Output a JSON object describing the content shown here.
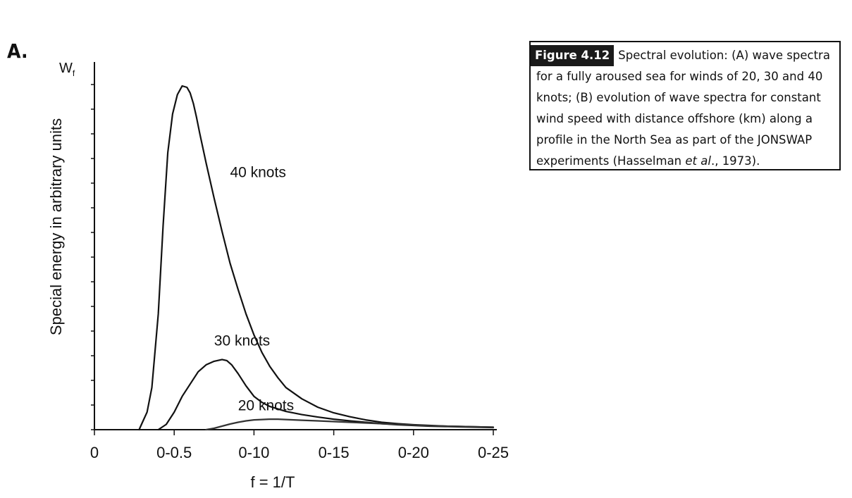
{
  "panel_label": "A.",
  "caption": {
    "figure_tag": "Figure 4.12",
    "text_before_italic": "Spectral evolution: (A) wave spectra for a fully aroused sea for winds of 20, 30 and 40 knots; (B) evolution of wave spectra for constant wind speed with distance offshore (km) along a profile in the North Sea as part of the JONSWAP experiments (Hasselman ",
    "italic": "et al",
    "text_after_italic": "., 1973)."
  },
  "chart_data": {
    "type": "line",
    "title": "",
    "xlabel": "f = 1/T",
    "ylabel": "Special energy in arbitrary units",
    "y_axis_symbol": "W",
    "y_axis_symbol_sub": "f",
    "x_tick_labels": [
      "0",
      "0-0.5",
      "0-10",
      "0-15",
      "0-20",
      "0-25"
    ],
    "x_tick_values": [
      0,
      0.05,
      0.1,
      0.15,
      0.2,
      0.25
    ],
    "xlim": [
      0,
      0.25
    ],
    "ylim": [
      0,
      100
    ],
    "y_minor_ticks": 14,
    "grid": false,
    "series": [
      {
        "name": "40 knots",
        "label_at": [
          0.085,
          72
        ],
        "x": [
          0.028,
          0.03,
          0.033,
          0.036,
          0.04,
          0.043,
          0.046,
          0.049,
          0.052,
          0.055,
          0.058,
          0.06,
          0.062,
          0.064,
          0.066,
          0.07,
          0.075,
          0.08,
          0.085,
          0.09,
          0.095,
          0.1,
          0.105,
          0.11,
          0.115,
          0.12,
          0.13,
          0.14,
          0.15,
          0.16,
          0.17,
          0.18,
          0.19,
          0.2,
          0.21,
          0.22,
          0.23,
          0.24,
          0.25
        ],
        "values": [
          0.0,
          2.0,
          5.0,
          12.0,
          33.0,
          58.0,
          79.0,
          90.0,
          95.5,
          98.0,
          97.6,
          96.0,
          93.0,
          89.0,
          84.5,
          76.0,
          66.0,
          56.5,
          47.5,
          40.0,
          33.0,
          27.0,
          22.0,
          18.0,
          14.8,
          12.0,
          8.8,
          6.4,
          4.8,
          3.7,
          2.8,
          2.1,
          1.7,
          1.4,
          1.2,
          1.0,
          0.9,
          0.8,
          0.7
        ]
      },
      {
        "name": "30 knots",
        "label_at": [
          0.075,
          24
        ],
        "x": [
          0.04,
          0.045,
          0.05,
          0.055,
          0.06,
          0.065,
          0.07,
          0.075,
          0.08,
          0.083,
          0.086,
          0.09,
          0.095,
          0.1,
          0.105,
          0.11,
          0.12,
          0.13,
          0.14,
          0.15,
          0.16,
          0.17,
          0.18,
          0.19,
          0.2,
          0.21,
          0.22,
          0.23,
          0.24,
          0.25
        ],
        "values": [
          0.0,
          1.5,
          5.0,
          9.5,
          13.0,
          16.5,
          18.5,
          19.5,
          20.0,
          19.7,
          18.5,
          16.0,
          12.5,
          9.5,
          7.8,
          6.6,
          5.2,
          4.3,
          3.6,
          3.0,
          2.5,
          2.1,
          1.7,
          1.4,
          1.2,
          1.0,
          0.9,
          0.8,
          0.7,
          0.6
        ]
      },
      {
        "name": "20 knots",
        "label_at": [
          0.09,
          5.5
        ],
        "x": [
          0.07,
          0.075,
          0.08,
          0.085,
          0.09,
          0.095,
          0.1,
          0.105,
          0.11,
          0.115,
          0.12,
          0.125,
          0.13,
          0.14,
          0.15,
          0.16,
          0.17,
          0.18,
          0.19,
          0.2,
          0.21,
          0.22,
          0.23,
          0.24,
          0.25
        ],
        "values": [
          0.0,
          0.4,
          1.0,
          1.6,
          2.1,
          2.5,
          2.8,
          2.9,
          3.0,
          3.0,
          2.9,
          2.8,
          2.7,
          2.5,
          2.3,
          2.1,
          1.9,
          1.7,
          1.5,
          1.3,
          1.1,
          1.0,
          0.9,
          0.8,
          0.7
        ]
      }
    ]
  }
}
